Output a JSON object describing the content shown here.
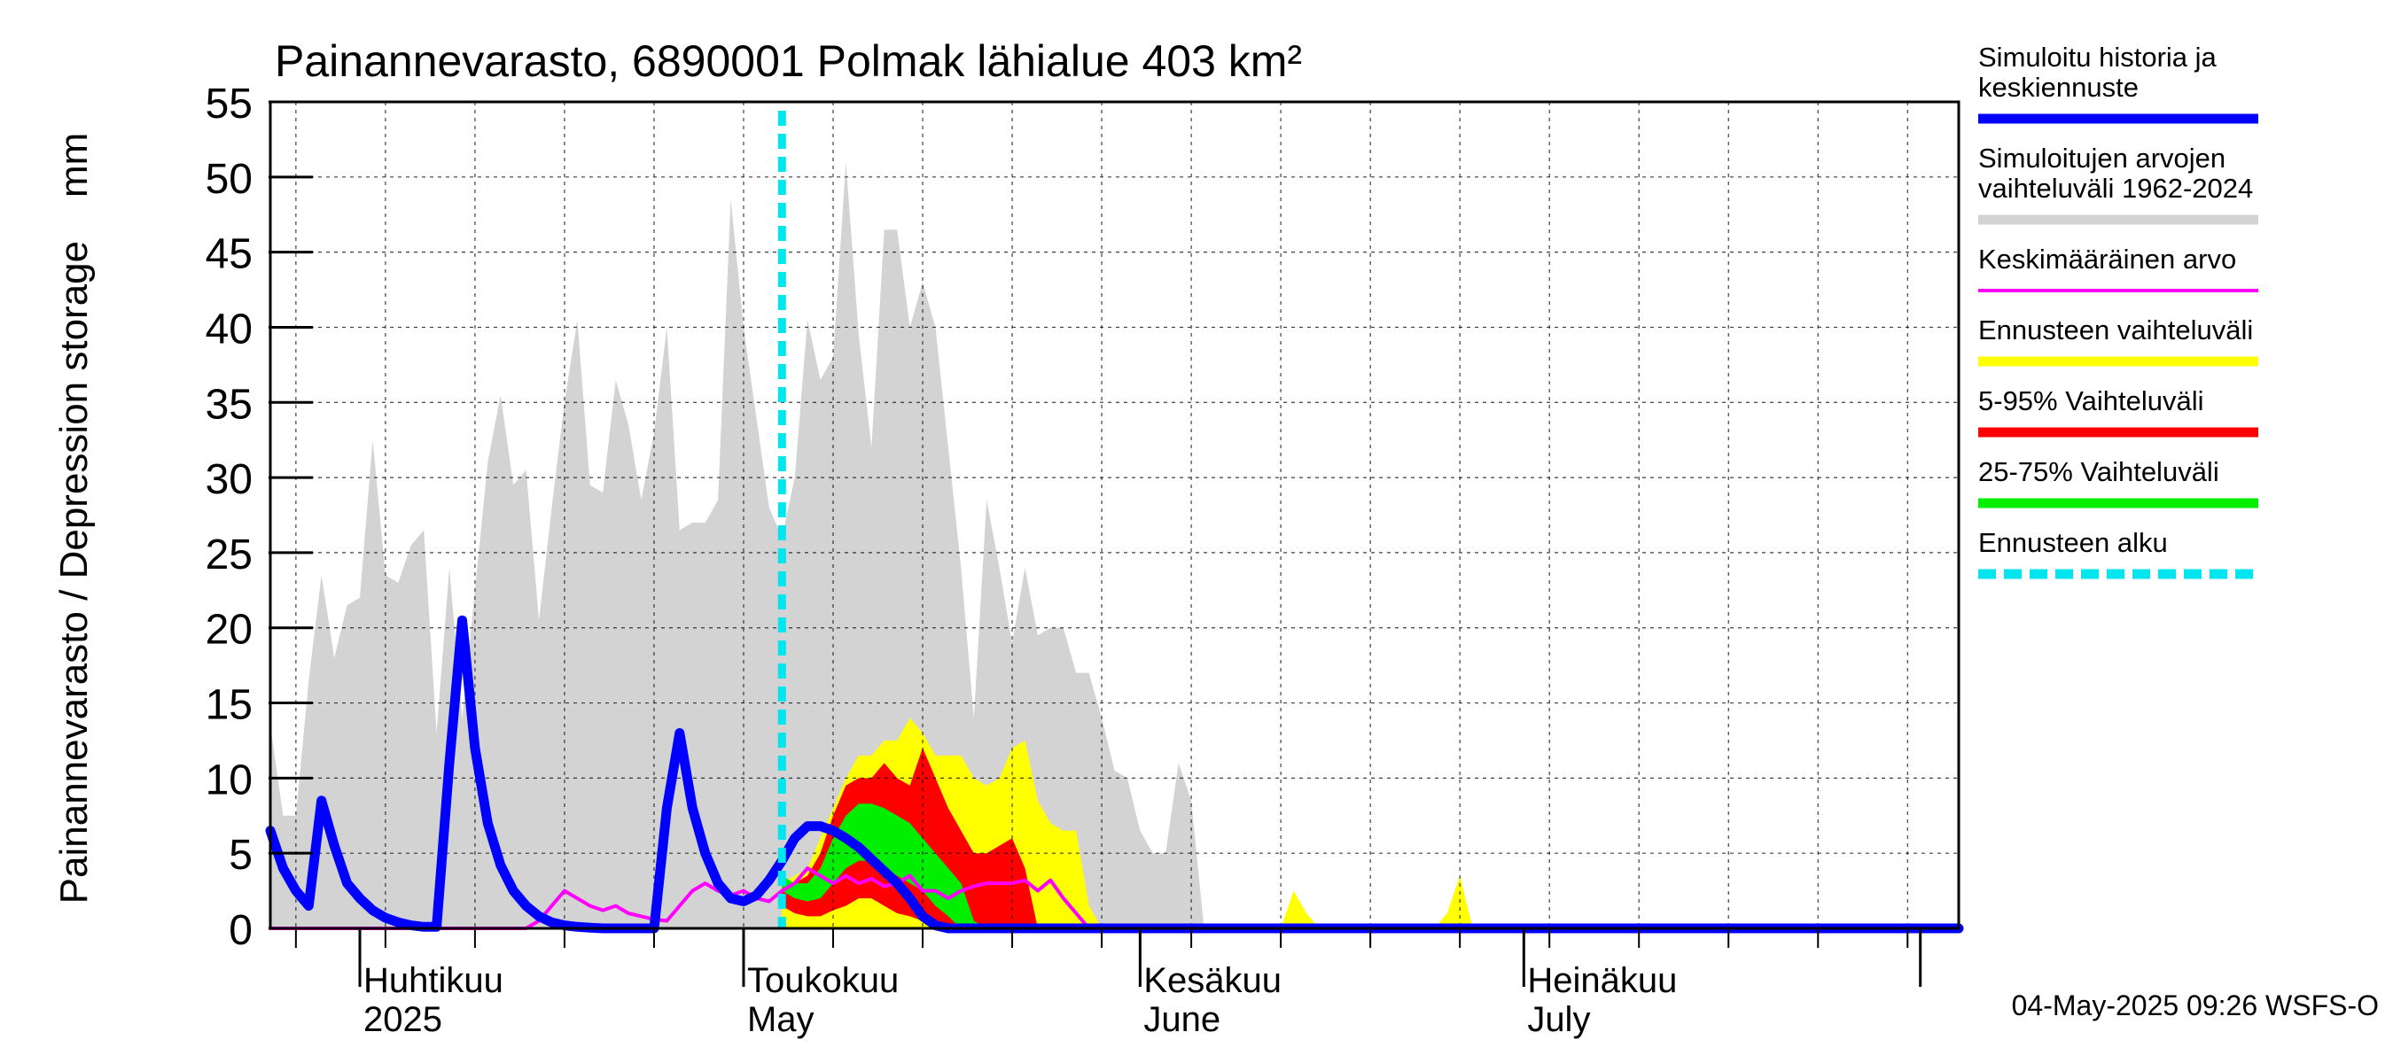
{
  "chart_data": {
    "type": "area",
    "title": "Painannevarasto, 6890001 Polmak lähialue 403 km²",
    "ylabel": "Painannevarasto / Depression storage    mm",
    "ylim": [
      0,
      55
    ],
    "yticks": [
      0,
      5,
      10,
      15,
      20,
      25,
      30,
      35,
      40,
      45,
      50,
      55
    ],
    "xlim": [
      "2025-03-25",
      "2025-08-04"
    ],
    "grid": true,
    "legend_position": "right",
    "month_labels": [
      {
        "date": "2025-04-01",
        "line1": "Huhtikuu",
        "line2": "2025"
      },
      {
        "date": "2025-05-01",
        "line1": "Toukokuu",
        "line2": "May"
      },
      {
        "date": "2025-06-01",
        "line1": "Kesäkuu",
        "line2": "June"
      },
      {
        "date": "2025-07-01",
        "line1": "Heinäkuu",
        "line2": "July"
      }
    ],
    "forecast_start": "2025-05-04",
    "footer": "04-May-2025 09:26 WSFS-O",
    "legend": [
      {
        "label": "Simuloitu historia ja keskiennuste",
        "color": "#0000ff",
        "style": "thick"
      },
      {
        "label": "Simuloitujen arvojen vaihteluväli 1962-2024",
        "color": "#d3d3d3",
        "style": "thick"
      },
      {
        "label": "Keskimääräinen arvo",
        "color": "#ff00ff",
        "style": "thin"
      },
      {
        "label": "Ennusteen vaihteluväli",
        "color": "#ffff00",
        "style": "thick"
      },
      {
        "label": "5-95% Vaihteluväli",
        "color": "#ff0000",
        "style": "thick"
      },
      {
        "label": "25-75% Vaihteluväli",
        "color": "#00ee00",
        "style": "thick"
      },
      {
        "label": "Ennusteen alku",
        "color": "#00e5ee",
        "style": "dashed"
      }
    ],
    "series": [
      {
        "name": "Simuloitujen arvojen vaihteluväli 1962-2024",
        "kind": "band",
        "color": "#d3d3d3",
        "x": [
          "2025-03-25",
          "2025-03-26",
          "2025-03-27",
          "2025-03-28",
          "2025-03-29",
          "2025-03-30",
          "2025-03-31",
          "2025-04-01",
          "2025-04-02",
          "2025-04-03",
          "2025-04-04",
          "2025-04-05",
          "2025-04-06",
          "2025-04-07",
          "2025-04-08",
          "2025-04-09",
          "2025-04-10",
          "2025-04-11",
          "2025-04-12",
          "2025-04-13",
          "2025-04-14",
          "2025-04-15",
          "2025-04-16",
          "2025-04-17",
          "2025-04-18",
          "2025-04-19",
          "2025-04-20",
          "2025-04-21",
          "2025-04-22",
          "2025-04-23",
          "2025-04-24",
          "2025-04-25",
          "2025-04-26",
          "2025-04-27",
          "2025-04-28",
          "2025-04-29",
          "2025-04-30",
          "2025-05-01",
          "2025-05-02",
          "2025-05-03",
          "2025-05-04",
          "2025-05-05",
          "2025-05-06",
          "2025-05-07",
          "2025-05-08",
          "2025-05-09",
          "2025-05-10",
          "2025-05-11",
          "2025-05-12",
          "2025-05-13",
          "2025-05-14",
          "2025-05-15",
          "2025-05-16",
          "2025-05-17",
          "2025-05-18",
          "2025-05-19",
          "2025-05-20",
          "2025-05-21",
          "2025-05-22",
          "2025-05-23",
          "2025-05-24",
          "2025-05-25",
          "2025-05-26",
          "2025-05-27",
          "2025-05-28",
          "2025-05-29",
          "2025-05-30",
          "2025-05-31",
          "2025-06-01",
          "2025-06-02",
          "2025-06-03",
          "2025-06-04",
          "2025-06-05",
          "2025-06-06",
          "2025-06-07",
          "2025-06-08",
          "2025-06-09",
          "2025-06-10",
          "2025-06-11",
          "2025-06-12",
          "2025-06-13",
          "2025-06-14",
          "2025-06-15",
          "2025-06-16",
          "2025-06-17",
          "2025-06-18",
          "2025-06-19",
          "2025-06-20",
          "2025-06-21",
          "2025-06-22",
          "2025-06-23",
          "2025-06-24",
          "2025-06-25",
          "2025-06-26",
          "2025-06-27",
          "2025-06-28",
          "2025-06-29",
          "2025-06-30"
        ],
        "lower": [
          0,
          0,
          0,
          0,
          0,
          0,
          0,
          0,
          0,
          0,
          0,
          0,
          0,
          0,
          0,
          0,
          0,
          0,
          0,
          0,
          0,
          0,
          0,
          0,
          0,
          0,
          0,
          0,
          0,
          0,
          0,
          0,
          0,
          0,
          0,
          0,
          0,
          0,
          0,
          0,
          0,
          0,
          0,
          0,
          0,
          0,
          0,
          0,
          0,
          0,
          0,
          0,
          0,
          0,
          0,
          0,
          0,
          0,
          0,
          0,
          0,
          0,
          0,
          0,
          0,
          0,
          0,
          0,
          0,
          0,
          0,
          0,
          0,
          0,
          0,
          0,
          0,
          0,
          0,
          0,
          0,
          0,
          0,
          0,
          0,
          0,
          0,
          0,
          0,
          0,
          0,
          0,
          0,
          0,
          0,
          0,
          0,
          0
        ],
        "upper": [
          13.5,
          7.5,
          7.5,
          16.5,
          23.5,
          18,
          21.5,
          22,
          32.5,
          23.5,
          23,
          25.5,
          26.5,
          13,
          24,
          14,
          22.5,
          31,
          35.5,
          29.5,
          30.5,
          20.5,
          28,
          35,
          40.5,
          29.5,
          29,
          36.5,
          33.5,
          28.5,
          33,
          40,
          26.5,
          27,
          27,
          28.5,
          48.5,
          40,
          34,
          28,
          26,
          30,
          40.5,
          36.5,
          38,
          51,
          39.5,
          32,
          46.5,
          46.5,
          40,
          43,
          40,
          32,
          24,
          14,
          28.5,
          24,
          19,
          24,
          19.5,
          20,
          20,
          17,
          17,
          14,
          10.5,
          10,
          6.5,
          5,
          5,
          11,
          8.5,
          0,
          0,
          0,
          0,
          0,
          0,
          0,
          0,
          0,
          0,
          0,
          0,
          0,
          0,
          0,
          0,
          0,
          0,
          0,
          0,
          0,
          0,
          0,
          0,
          0
        ]
      },
      {
        "name": "Ennusteen vaihteluväli",
        "kind": "band",
        "color": "#ffff00",
        "x": [
          "2025-05-04",
          "2025-05-05",
          "2025-05-06",
          "2025-05-07",
          "2025-05-08",
          "2025-05-09",
          "2025-05-10",
          "2025-05-11",
          "2025-05-12",
          "2025-05-13",
          "2025-05-14",
          "2025-05-15",
          "2025-05-16",
          "2025-05-17",
          "2025-05-18",
          "2025-05-19",
          "2025-05-20",
          "2025-05-21",
          "2025-05-22",
          "2025-05-23",
          "2025-05-24",
          "2025-05-25",
          "2025-05-26",
          "2025-05-27",
          "2025-05-28",
          "2025-05-29",
          "2025-05-30",
          "2025-05-31",
          "2025-06-01",
          "2025-06-02",
          "2025-06-03",
          "2025-06-04",
          "2025-06-05",
          "2025-06-06",
          "2025-06-07",
          "2025-06-08",
          "2025-06-09",
          "2025-06-10",
          "2025-06-11",
          "2025-06-12",
          "2025-06-13",
          "2025-06-14",
          "2025-06-15",
          "2025-06-16",
          "2025-06-17",
          "2025-06-18",
          "2025-06-19",
          "2025-06-20",
          "2025-06-21",
          "2025-06-22",
          "2025-06-23",
          "2025-06-24",
          "2025-06-25",
          "2025-06-26",
          "2025-06-27",
          "2025-06-28",
          "2025-06-29",
          "2025-06-30"
        ],
        "lower": [
          0,
          0,
          0,
          0,
          0,
          0,
          0,
          0,
          0,
          0,
          0,
          0,
          0,
          0,
          0,
          0,
          0,
          0,
          0,
          0,
          0,
          0,
          0,
          0,
          0,
          0,
          0,
          0,
          0,
          0,
          0,
          0,
          0,
          0,
          0,
          0,
          0,
          0,
          0,
          0,
          0,
          0,
          0,
          0,
          0,
          0,
          0,
          0,
          0,
          0,
          0,
          0,
          0,
          0,
          0,
          0,
          0,
          0
        ],
        "upper": [
          3,
          3.5,
          4,
          6,
          8,
          10,
          11.5,
          11.5,
          12.5,
          12.5,
          14,
          13,
          11.5,
          11.5,
          11.5,
          10,
          9.5,
          10,
          12,
          12.5,
          8.5,
          7,
          6.5,
          6.5,
          1.5,
          0,
          0,
          0,
          0,
          0,
          0,
          0,
          0,
          0,
          0,
          0,
          0,
          0,
          0,
          0,
          2.5,
          1,
          0,
          0,
          0,
          0,
          0,
          0,
          0,
          0,
          0,
          0,
          1,
          3.5,
          0,
          0,
          0,
          0
        ]
      },
      {
        "name": "5-95% Vaihteluväli",
        "kind": "band",
        "color": "#ff0000",
        "x": [
          "2025-05-04",
          "2025-05-05",
          "2025-05-06",
          "2025-05-07",
          "2025-05-08",
          "2025-05-09",
          "2025-05-10",
          "2025-05-11",
          "2025-05-12",
          "2025-05-13",
          "2025-05-14",
          "2025-05-15",
          "2025-05-16",
          "2025-05-17",
          "2025-05-18",
          "2025-05-19",
          "2025-05-20",
          "2025-05-21",
          "2025-05-22",
          "2025-05-23",
          "2025-05-24",
          "2025-05-25",
          "2025-05-26"
        ],
        "lower": [
          1.5,
          1,
          0.8,
          0.8,
          1.2,
          1.5,
          2,
          2,
          1.5,
          1,
          0.8,
          0.5,
          0,
          0,
          0,
          0,
          0,
          0,
          0,
          0,
          0,
          0,
          0
        ],
        "upper": [
          3,
          3,
          3.5,
          5,
          7.5,
          9.5,
          10,
          10,
          11,
          10,
          9.5,
          12,
          10,
          8,
          6.5,
          5,
          5,
          5.5,
          6,
          4,
          0,
          0,
          0
        ]
      },
      {
        "name": "25-75% Vaihteluväli",
        "kind": "band",
        "color": "#00ee00",
        "x": [
          "2025-05-04",
          "2025-05-05",
          "2025-05-06",
          "2025-05-07",
          "2025-05-08",
          "2025-05-09",
          "2025-05-10",
          "2025-05-11",
          "2025-05-12",
          "2025-05-13",
          "2025-05-14",
          "2025-05-15",
          "2025-05-16",
          "2025-05-17",
          "2025-05-18",
          "2025-05-19",
          "2025-05-20",
          "2025-05-21"
        ],
        "lower": [
          2.5,
          2,
          1.8,
          2,
          3,
          4,
          4.5,
          4.5,
          4,
          3.5,
          3,
          2.5,
          1.5,
          0.8,
          0,
          0,
          0,
          0
        ],
        "upper": [
          3.5,
          3,
          3,
          4,
          6,
          7.5,
          8.3,
          8.3,
          8,
          7.5,
          7,
          6,
          5,
          4,
          3,
          0.5,
          0,
          0
        ]
      },
      {
        "name": "Keskimääräinen arvo",
        "kind": "line",
        "color": "#ff00ff",
        "width": 4,
        "x": [
          "2025-03-25",
          "2025-04-14",
          "2025-04-15",
          "2025-04-16",
          "2025-04-17",
          "2025-04-18",
          "2025-04-19",
          "2025-04-20",
          "2025-04-21",
          "2025-04-22",
          "2025-04-23",
          "2025-04-24",
          "2025-04-25",
          "2025-04-26",
          "2025-04-27",
          "2025-04-28",
          "2025-04-29",
          "2025-04-30",
          "2025-05-01",
          "2025-05-02",
          "2025-05-03",
          "2025-05-04",
          "2025-05-05",
          "2025-05-06",
          "2025-05-07",
          "2025-05-08",
          "2025-05-09",
          "2025-05-10",
          "2025-05-11",
          "2025-05-12",
          "2025-05-13",
          "2025-05-14",
          "2025-05-15",
          "2025-05-16",
          "2025-05-17",
          "2025-05-18",
          "2025-05-19",
          "2025-05-20",
          "2025-05-21",
          "2025-05-22",
          "2025-05-23",
          "2025-05-24",
          "2025-05-25",
          "2025-05-26",
          "2025-05-27",
          "2025-05-28",
          "2025-05-29",
          "2025-05-30",
          "2025-05-31",
          "2025-08-04"
        ],
        "y": [
          0,
          0,
          0.5,
          1.5,
          2.5,
          2,
          1.5,
          1.2,
          1.5,
          1,
          0.8,
          0.6,
          0.5,
          1.5,
          2.5,
          3,
          2.5,
          2.2,
          2.5,
          2,
          1.8,
          2.5,
          3,
          4,
          3.5,
          3,
          3.5,
          3,
          3.3,
          2.8,
          3,
          3.5,
          2.5,
          2.5,
          2,
          2.5,
          2.8,
          3,
          3,
          3,
          3.2,
          2.5,
          3.2,
          2,
          1,
          0,
          0.2,
          0,
          0,
          0
        ]
      },
      {
        "name": "Simuloitu historia ja keskiennuste",
        "kind": "line",
        "color": "#0000ff",
        "width": 11,
        "x": [
          "2025-03-25",
          "2025-03-26",
          "2025-03-27",
          "2025-03-28",
          "2025-03-29",
          "2025-03-30",
          "2025-03-31",
          "2025-04-01",
          "2025-04-02",
          "2025-04-03",
          "2025-04-04",
          "2025-04-05",
          "2025-04-06",
          "2025-04-07",
          "2025-04-08",
          "2025-04-09",
          "2025-04-10",
          "2025-04-11",
          "2025-04-12",
          "2025-04-13",
          "2025-04-14",
          "2025-04-15",
          "2025-04-16",
          "2025-04-17",
          "2025-04-18",
          "2025-04-19",
          "2025-04-20",
          "2025-04-21",
          "2025-04-22",
          "2025-04-23",
          "2025-04-24",
          "2025-04-25",
          "2025-04-26",
          "2025-04-27",
          "2025-04-28",
          "2025-04-29",
          "2025-04-30",
          "2025-05-01",
          "2025-05-02",
          "2025-05-03",
          "2025-05-04",
          "2025-05-05",
          "2025-05-06",
          "2025-05-07",
          "2025-05-08",
          "2025-05-09",
          "2025-05-10",
          "2025-05-11",
          "2025-05-12",
          "2025-05-13",
          "2025-05-14",
          "2025-05-15",
          "2025-05-16",
          "2025-05-17",
          "2025-05-18",
          "2025-05-19",
          "2025-05-20",
          "2025-05-21",
          "2025-08-04"
        ],
        "y": [
          6.5,
          4,
          2.5,
          1.5,
          8.5,
          5.5,
          3,
          2,
          1.2,
          0.7,
          0.4,
          0.2,
          0.1,
          0.1,
          11,
          20.5,
          12,
          7,
          4.2,
          2.5,
          1.5,
          0.8,
          0.4,
          0.2,
          0.1,
          0.05,
          0,
          0,
          0,
          0,
          0,
          8,
          13,
          8,
          5,
          3,
          2,
          1.8,
          2.2,
          3.2,
          4.5,
          6,
          6.8,
          6.8,
          6.5,
          6,
          5.4,
          4.6,
          3.8,
          3,
          2,
          0.8,
          0.2,
          0,
          0,
          0,
          0,
          0,
          0
        ]
      }
    ]
  }
}
